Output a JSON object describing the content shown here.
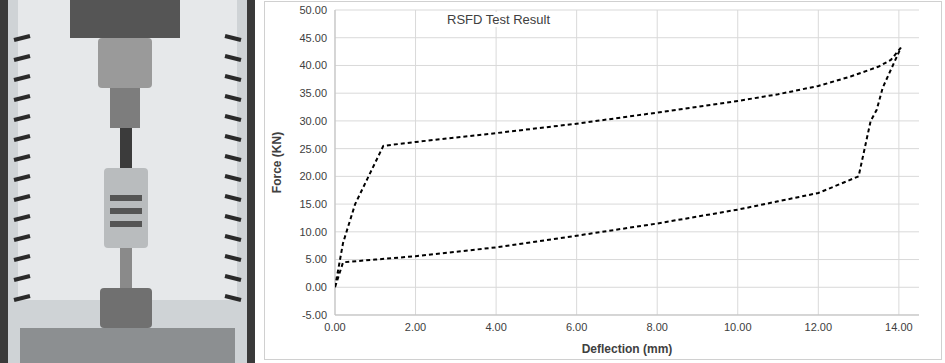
{
  "chart_data": {
    "type": "line",
    "title": "RSFD Test Result",
    "x_label": "Deflection (mm)",
    "y_label": "Force (KN)",
    "x": [
      0.0,
      0.2,
      0.5,
      0.8,
      1.2,
      2.0,
      4.0,
      6.0,
      8.0,
      10.0,
      11.0,
      12.0,
      12.8,
      13.5,
      13.8,
      14.05,
      13.6,
      13.45,
      13.3,
      13.0,
      12.0,
      11.0,
      10.0,
      8.0,
      6.0,
      4.0,
      2.0,
      1.0,
      0.2,
      0.0
    ],
    "values": [
      0.0,
      8.0,
      15.0,
      19.5,
      25.5,
      26.2,
      27.8,
      29.5,
      31.5,
      33.6,
      34.8,
      36.3,
      38.0,
      39.8,
      41.0,
      43.2,
      36.0,
      32.0,
      30.0,
      20.0,
      17.0,
      15.5,
      14.0,
      11.5,
      9.3,
      7.2,
      5.6,
      5.0,
      4.5,
      0.0
    ],
    "xlim": [
      0,
      14.5
    ],
    "ylim": [
      -5,
      50
    ],
    "xticks": [
      {
        "value": 0,
        "label": "0.00"
      },
      {
        "value": 2,
        "label": "2.00"
      },
      {
        "value": 4,
        "label": "4.00"
      },
      {
        "value": 6,
        "label": "6.00"
      },
      {
        "value": 8,
        "label": "8.00"
      },
      {
        "value": 10,
        "label": "10.00"
      },
      {
        "value": 12,
        "label": "12.00"
      },
      {
        "value": 14,
        "label": "14.00"
      }
    ],
    "yticks": [
      {
        "value": -5,
        "label": "-5.00"
      },
      {
        "value": 0,
        "label": "0.00"
      },
      {
        "value": 5,
        "label": "5.00"
      },
      {
        "value": 10,
        "label": "10.00"
      },
      {
        "value": 15,
        "label": "15.00"
      },
      {
        "value": 20,
        "label": "20.00"
      },
      {
        "value": 25,
        "label": "25.00"
      },
      {
        "value": 30,
        "label": "30.00"
      },
      {
        "value": 35,
        "label": "35.00"
      },
      {
        "value": 40,
        "label": "40.00"
      },
      {
        "value": 45,
        "label": "45.00"
      },
      {
        "value": 50,
        "label": "50.00"
      }
    ],
    "grid": true,
    "color": "#000000",
    "line_style": "dashed",
    "marker": "none"
  }
}
